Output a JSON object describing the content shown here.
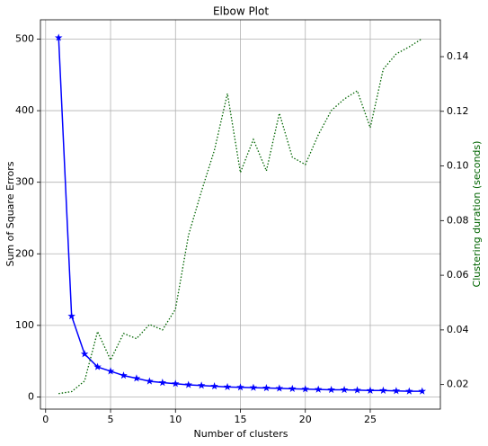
{
  "chart_data": {
    "type": "line",
    "title": "Elbow Plot",
    "x_label": "Number of clusters",
    "y_label": "Sum of Square Errors",
    "y2_label": "Clustering duration (seconds)",
    "x": [
      1,
      2,
      3,
      4,
      5,
      6,
      7,
      8,
      9,
      10,
      11,
      12,
      13,
      14,
      15,
      16,
      17,
      18,
      19,
      20,
      21,
      22,
      23,
      24,
      25,
      26,
      27,
      28,
      29
    ],
    "series": [
      {
        "name": "Sum of Square Errors",
        "color": "#0000ff",
        "marker": "star",
        "values": [
          502,
          113,
          60,
          42,
          36,
          30,
          26,
          22,
          20,
          18.5,
          17,
          16,
          15,
          14,
          13.5,
          13,
          12.5,
          12,
          11.5,
          11,
          10.5,
          10,
          10,
          9.5,
          9,
          9,
          8.5,
          8,
          8
        ]
      },
      {
        "name": "Clustering duration (seconds)",
        "color": "#006400",
        "axis": "y2",
        "dash": "dotted",
        "values": [
          0.0167,
          0.0174,
          0.0213,
          0.0394,
          0.029,
          0.0387,
          0.0368,
          0.042,
          0.04,
          0.0476,
          0.0746,
          0.0907,
          0.1058,
          0.1265,
          0.0976,
          0.1097,
          0.0982,
          0.1193,
          0.1032,
          0.1005,
          0.1114,
          0.1203,
          0.1245,
          0.1275,
          0.114,
          0.1354,
          0.141,
          0.1436,
          0.1466
        ]
      }
    ],
    "xlim": [
      -0.4,
      30.4
    ],
    "xticks": [
      0,
      5,
      10,
      15,
      20,
      25
    ],
    "ylim": [
      -17,
      527
    ],
    "yticks": [
      0,
      100,
      200,
      300,
      400,
      500
    ],
    "y2lim": [
      0.011,
      0.1535
    ],
    "y2ticks": [
      0.02,
      0.04,
      0.06,
      0.08,
      {
        "value": 0.1,
        "label": "0.10"
      },
      0.12,
      0.14
    ],
    "grid": true
  }
}
